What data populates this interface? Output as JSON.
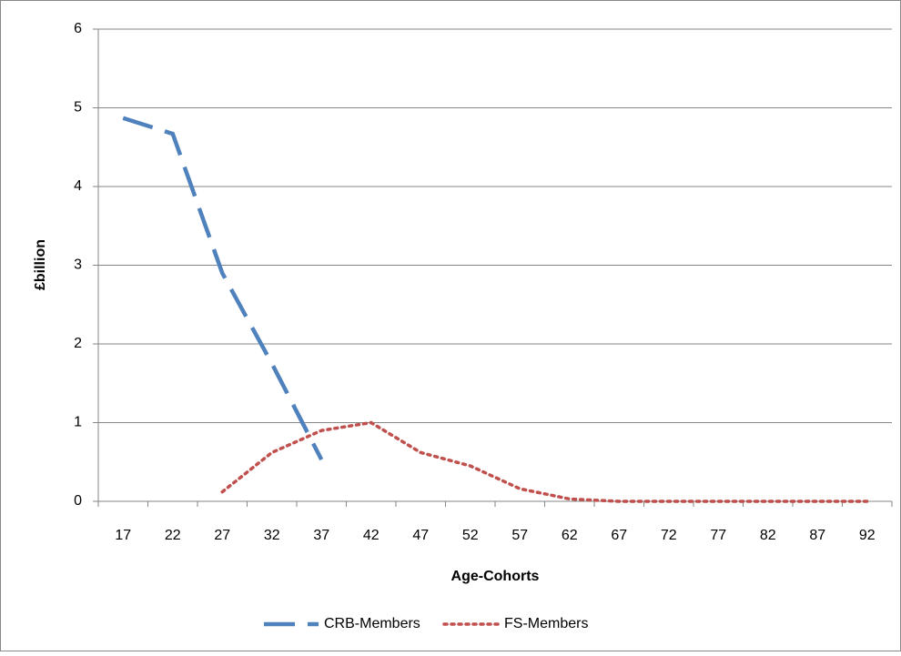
{
  "chart_data": {
    "type": "line",
    "categories": [
      "17",
      "22",
      "27",
      "32",
      "37",
      "42",
      "47",
      "52",
      "57",
      "62",
      "67",
      "72",
      "77",
      "82",
      "87",
      "92"
    ],
    "series": [
      {
        "name": "CRB-Members",
        "color": "#4f81bd",
        "dash": "dashed",
        "values": [
          4.87,
          4.67,
          2.9,
          1.75,
          0.53,
          null,
          null,
          null,
          null,
          null,
          null,
          null,
          null,
          null,
          null,
          null
        ]
      },
      {
        "name": "FS-Members",
        "color": "#c0504d",
        "dash": "dotted",
        "values": [
          null,
          null,
          0.12,
          0.62,
          0.9,
          1.0,
          0.62,
          0.45,
          0.16,
          0.03,
          0,
          0,
          0,
          0,
          0,
          0
        ]
      }
    ],
    "x_label": "Age-Cohorts",
    "y_label": "£billion",
    "ylim": [
      0,
      6
    ],
    "yticks": [
      0,
      1,
      2,
      3,
      4,
      5,
      6
    ],
    "grid": true,
    "legend": "bottom"
  }
}
